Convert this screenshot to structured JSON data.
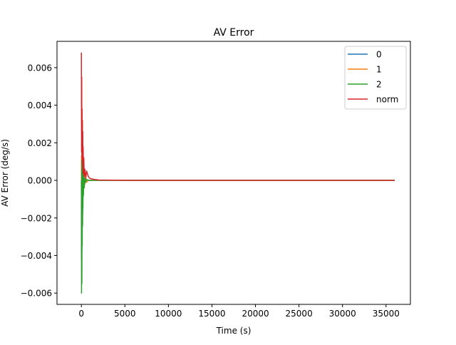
{
  "chart_data": {
    "type": "line",
    "title": "AV Error",
    "xlabel": "Time (s)",
    "ylabel": "AV Error (deg/s)",
    "xlim": [
      -2800,
      37800
    ],
    "ylim": [
      -0.0066,
      0.0074
    ],
    "xticks": [
      0,
      5000,
      10000,
      15000,
      20000,
      25000,
      30000,
      35000
    ],
    "xtick_labels": [
      "0",
      "5000",
      "10000",
      "15000",
      "20000",
      "25000",
      "30000",
      "35000"
    ],
    "yticks": [
      -0.006,
      -0.004,
      -0.002,
      0.0,
      0.002,
      0.004,
      0.006
    ],
    "ytick_labels": [
      "−0.006",
      "−0.004",
      "−0.002",
      "0.000",
      "0.002",
      "0.004",
      "0.006"
    ],
    "grid": false,
    "legend_position": "top-right",
    "series": [
      {
        "name": "0",
        "color": "#1f77b4",
        "x": [
          0,
          20,
          40,
          60,
          80,
          100,
          120,
          140,
          160,
          180,
          200,
          240,
          280,
          330,
          400,
          500,
          600,
          800,
          1000,
          1500,
          2000,
          5000,
          10000,
          20000,
          30000,
          36000
        ],
        "y": [
          0.0,
          -0.0042,
          0.0012,
          -0.0038,
          0.0008,
          -0.0025,
          0.0006,
          -0.0018,
          0.0002,
          -0.001,
          0.0004,
          -0.0006,
          0.0003,
          -0.0003,
          0.0001,
          -0.0001,
          5e-05,
          0.0,
          0.0,
          0.0,
          0.0,
          0.0,
          0.0,
          0.0,
          0.0,
          0.0
        ]
      },
      {
        "name": "1",
        "color": "#ff7f0e",
        "x": [
          0,
          20,
          40,
          60,
          80,
          100,
          120,
          140,
          160,
          180,
          200,
          240,
          280,
          330,
          400,
          500,
          600,
          800,
          1000,
          1500,
          2000,
          5000,
          10000,
          20000,
          30000,
          36000
        ],
        "y": [
          0.0,
          0.0013,
          -0.0021,
          0.0011,
          -0.0016,
          0.0009,
          -0.0012,
          0.0006,
          -0.0009,
          0.0004,
          -0.0006,
          0.0003,
          -0.0004,
          0.0002,
          -0.0002,
          0.0001,
          -0.0001,
          0.0,
          0.0,
          0.0,
          0.0,
          0.0,
          0.0,
          0.0,
          0.0,
          0.0
        ]
      },
      {
        "name": "2",
        "color": "#2ca02c",
        "x": [
          0,
          20,
          40,
          60,
          80,
          100,
          120,
          140,
          160,
          180,
          200,
          240,
          280,
          330,
          400,
          500,
          600,
          800,
          1000,
          1500,
          2000,
          5000,
          10000,
          20000,
          30000,
          36000
        ],
        "y": [
          0.0,
          -0.006,
          0.0011,
          -0.0055,
          0.0009,
          -0.0035,
          0.0006,
          -0.0024,
          0.0004,
          -0.0015,
          0.0003,
          -0.0008,
          0.0002,
          -0.0004,
          0.0001,
          -0.0001,
          5e-05,
          0.0,
          0.0,
          0.0,
          0.0,
          0.0,
          0.0,
          0.0,
          0.0,
          0.0
        ]
      },
      {
        "name": "norm",
        "color": "#d62728",
        "x": [
          0,
          20,
          40,
          60,
          80,
          100,
          120,
          140,
          160,
          180,
          200,
          240,
          280,
          330,
          400,
          500,
          600,
          800,
          1000,
          1500,
          2000,
          5000,
          10000,
          20000,
          30000,
          36000
        ],
        "y": [
          0.0068,
          0.0015,
          0.0055,
          0.0012,
          0.0038,
          0.0009,
          0.0032,
          0.0006,
          0.0026,
          0.0004,
          0.0018,
          0.0003,
          0.0012,
          0.0002,
          0.0006,
          0.0001,
          0.0005,
          0.0002,
          0.0001,
          5e-05,
          2e-05,
          0.0,
          0.0,
          0.0,
          0.0,
          0.0
        ]
      }
    ]
  }
}
